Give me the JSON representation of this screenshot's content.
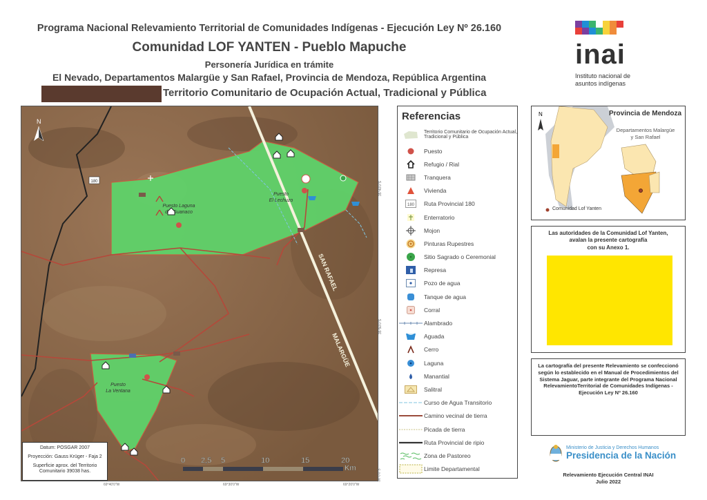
{
  "header": {
    "program": "Programa Nacional Relevamiento Territorial de Comunidades Indígenas - Ejecución Ley Nº 26.160",
    "community": "Comunidad LOF YANTEN - Pueblo Mapuche",
    "legal_status": "Personería Jurídica en trámite",
    "location": "El Nevado, Departamentos Malargüe y San Rafael, Provincia de Mendoza, República Argentina",
    "territory": "Territorio Comunitario de Ocupación Actual, Tradicional y Pública"
  },
  "logo": {
    "name": "inai",
    "subtitle_1": "Instituto nacional de",
    "subtitle_2": "asuntos indígenas"
  },
  "map": {
    "north": "N",
    "labels": {
      "puesto_laguna_1": "Puesto Laguna",
      "puesto_laguna_2": "del Guanaco",
      "puesto_lechuzo_1": "Puesto",
      "puesto_lechuzo_2": "El Lechuzo",
      "puesto_ventana_1": "Puesto",
      "puesto_ventana_2": "La Ventana",
      "route": "180",
      "road_1": "SAN RAFAEL",
      "road_2": "MALARGÜE"
    },
    "lat_ticks": [
      "35°40'0\"S",
      "35°50'0\"S",
      "36°0'0\"S"
    ],
    "lon_ticks": [
      "69°40'0\"W",
      "69°30'0\"W",
      "69°20'0\"W"
    ],
    "scale": {
      "ticks": [
        "0",
        "2,5",
        "5",
        "10",
        "15",
        "20"
      ],
      "unit": "Km"
    },
    "info": {
      "datum": "Datum:    POSGAR 2007",
      "projection": "Proyección: Gauss Krüger - Faja 2",
      "area_1": "Superficie aprox. del Territorio",
      "area_2": "Comunitario 39038 has."
    }
  },
  "legend": {
    "title": "Referencias",
    "items": [
      {
        "icon": "territory-swatch",
        "label": "Territorio Comunitario de Ocupación Actual, Tradicional y Pública"
      },
      {
        "icon": "puesto-icon",
        "label": "Puesto"
      },
      {
        "icon": "refugio-icon",
        "label": "Refugio / Rial"
      },
      {
        "icon": "tranquera-icon",
        "label": "Tranquera"
      },
      {
        "icon": "vivienda-icon",
        "label": "Vivienda"
      },
      {
        "icon": "route-180-icon",
        "label": "Ruta Provincial 180"
      },
      {
        "icon": "enterratorio-icon",
        "label": "Enterratorio"
      },
      {
        "icon": "mojon-icon",
        "label": "Mojon"
      },
      {
        "icon": "pinturas-icon",
        "label": "Pinturas Rupestres"
      },
      {
        "icon": "sitio-sagrado-icon",
        "label": "Sitio Sagrado o Ceremonial"
      },
      {
        "icon": "represa-icon",
        "label": "Represa"
      },
      {
        "icon": "pozo-icon",
        "label": "Pozo de agua"
      },
      {
        "icon": "tanque-icon",
        "label": "Tanque de agua"
      },
      {
        "icon": "corral-icon",
        "label": "Corral"
      },
      {
        "icon": "alambrado-icon",
        "label": "Alambrado"
      },
      {
        "icon": "aguada-icon",
        "label": "Aguada"
      },
      {
        "icon": "cerro-icon",
        "label": "Cerro"
      },
      {
        "icon": "laguna-icon",
        "label": "Laguna"
      },
      {
        "icon": "manantial-icon",
        "label": "Manantial"
      },
      {
        "icon": "salitral-icon",
        "label": "Salitral"
      },
      {
        "icon": "curso-agua-icon",
        "label": "Curso de Agua Transitorio"
      },
      {
        "icon": "camino-vecinal-icon",
        "label": "Camino vecinal de tierra"
      },
      {
        "icon": "picada-icon",
        "label": "Picada de tierra"
      },
      {
        "icon": "ruta-ripio-icon",
        "label": "Ruta Provincial de ripio"
      },
      {
        "icon": "pastoreo-icon",
        "label": "Zona de Pastoreo"
      },
      {
        "icon": "limite-icon",
        "label": "Limite Departamental"
      }
    ]
  },
  "inset": {
    "north": "N",
    "title": "Provincia de Mendoza",
    "subtitle_1": "Departamentos Malargüe",
    "subtitle_2": "y San Rafael",
    "legend": "Comunidad Lof Yanten"
  },
  "endorsement": {
    "line_1": "Las autoridades de la Comunidad Lof Yanten,",
    "line_2": "avalan la presente cartografía",
    "line_3": "con su Anexo 1."
  },
  "note": "La cartografía del presente Relevamiento se confeccionó según lo establecido en el Manual de Procedimientos del Sistema Jaguar, parte integrante del Programa Nacional RelevamientoTerritorial de Comunidades Indígenas - Ejecución Ley Nº 26.160",
  "ministry": {
    "line_1": "Ministerio de Justicia y Derechos Humanos",
    "line_2": "Presidencia de la Nación"
  },
  "footer": {
    "line_1": "Relevamiento Ejecución Central INAI",
    "line_2": "Julio 2022"
  },
  "colors": {
    "territory": "#5fd26a",
    "terrain": "#8a6a4a",
    "road": "#b5483a",
    "highlight": "#ffe600",
    "redaction": "#5a3a2e"
  }
}
